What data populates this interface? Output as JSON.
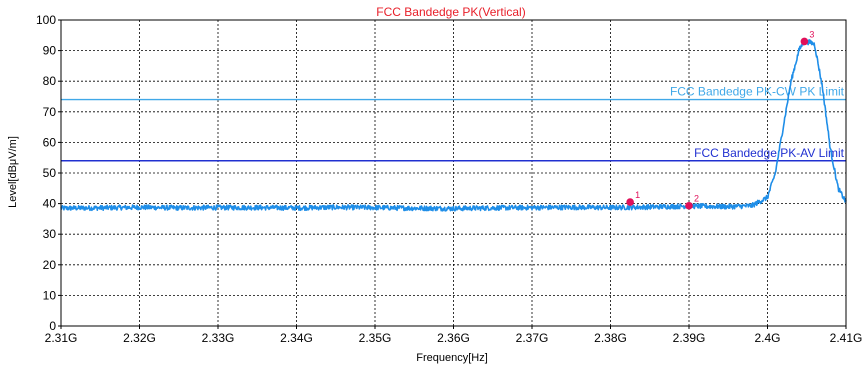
{
  "chart_data": {
    "type": "line",
    "title": "FCC Bandedge PK(Vertical)",
    "xlabel": "Frequency[Hz]",
    "ylabel": "Level[dBμV/m]",
    "xlim": [
      2.31,
      2.41
    ],
    "ylim": [
      0,
      100
    ],
    "grid": true,
    "x_ticks": [
      {
        "value": 2.31,
        "label": "2.31G"
      },
      {
        "value": 2.32,
        "label": "2.32G"
      },
      {
        "value": 2.33,
        "label": "2.33G"
      },
      {
        "value": 2.34,
        "label": "2.34G"
      },
      {
        "value": 2.35,
        "label": "2.35G"
      },
      {
        "value": 2.36,
        "label": "2.36G"
      },
      {
        "value": 2.37,
        "label": "2.37G"
      },
      {
        "value": 2.38,
        "label": "2.38G"
      },
      {
        "value": 2.39,
        "label": "2.39G"
      },
      {
        "value": 2.4,
        "label": "2.4G"
      },
      {
        "value": 2.41,
        "label": "2.41G"
      }
    ],
    "y_ticks": [
      {
        "value": 0,
        "label": "0"
      },
      {
        "value": 10,
        "label": "10"
      },
      {
        "value": 20,
        "label": "20"
      },
      {
        "value": 30,
        "label": "30"
      },
      {
        "value": 40,
        "label": "40"
      },
      {
        "value": 50,
        "label": "50"
      },
      {
        "value": 60,
        "label": "60"
      },
      {
        "value": 70,
        "label": "70"
      },
      {
        "value": 80,
        "label": "80"
      },
      {
        "value": 90,
        "label": "90"
      },
      {
        "value": 100,
        "label": "100"
      }
    ],
    "series": [
      {
        "color": "#1f8ee8",
        "x": [
          2.31,
          2.315,
          2.32,
          2.325,
          2.33,
          2.335,
          2.34,
          2.345,
          2.35,
          2.355,
          2.36,
          2.365,
          2.37,
          2.375,
          2.38,
          2.385,
          2.39,
          2.395,
          2.398,
          2.4,
          2.401,
          2.402,
          2.403,
          2.404,
          2.4045,
          2.405,
          2.4055,
          2.406,
          2.407,
          2.408,
          2.409,
          2.41
        ],
        "y": [
          38.5,
          38.6,
          38.8,
          38.6,
          38.7,
          38.7,
          38.6,
          38.8,
          38.7,
          38.5,
          38.4,
          38.6,
          38.7,
          38.8,
          38.7,
          38.9,
          39.2,
          39.0,
          39.3,
          42.0,
          50.0,
          65.0,
          80.0,
          90.0,
          92.5,
          92.8,
          92.7,
          92.0,
          78.0,
          58.0,
          45.0,
          40.5
        ]
      }
    ],
    "limits": [
      {
        "label": "FCC Bandedge PK-CW PK Limit",
        "value": 74,
        "color": "#40a8e8"
      },
      {
        "label": "FCC Bandedge PK-AV Limit",
        "value": 54,
        "color": "#2030d0"
      }
    ],
    "markers": [
      {
        "label": "1",
        "x": 2.3825,
        "y": 40.5
      },
      {
        "label": "2",
        "x": 2.39,
        "y": 39.3
      },
      {
        "label": "3",
        "x": 2.4047,
        "y": 93.0
      }
    ],
    "colors": {
      "title": "#e8202a",
      "marker": "#e0105a",
      "trace": "#1f8ee8"
    }
  }
}
